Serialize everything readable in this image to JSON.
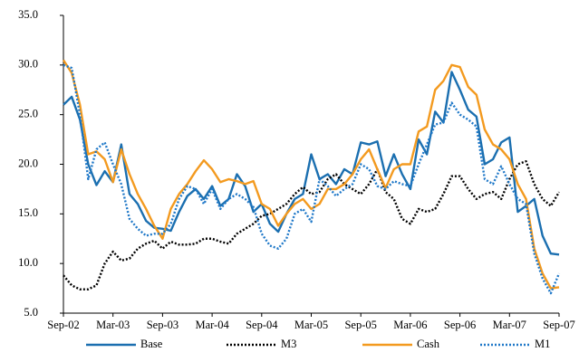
{
  "chart_data": {
    "type": "line",
    "categories": [
      "Sep-02",
      null,
      null,
      null,
      null,
      null,
      "Mar-03",
      null,
      null,
      null,
      null,
      null,
      "Sep-03",
      null,
      null,
      null,
      null,
      null,
      "Mar-04",
      null,
      null,
      null,
      null,
      null,
      "Sep-04",
      null,
      null,
      null,
      null,
      null,
      "Mar-05",
      null,
      null,
      null,
      null,
      null,
      "Sep-05",
      null,
      null,
      null,
      null,
      null,
      "Mar-06",
      null,
      null,
      null,
      null,
      null,
      "Sep-06",
      null,
      null,
      null,
      null,
      null,
      "Mar-07",
      null,
      null,
      null,
      null,
      null,
      "Sep-07"
    ],
    "ylim": [
      5,
      35
    ],
    "yticks": [
      {
        "value": 5,
        "label": "5.0"
      },
      {
        "value": 10,
        "label": "10.0"
      },
      {
        "value": 15,
        "label": "15.0"
      },
      {
        "value": 20,
        "label": "20.0"
      },
      {
        "value": 25,
        "label": "25.0"
      },
      {
        "value": 30,
        "label": "30.0"
      },
      {
        "value": 35,
        "label": "35.0"
      }
    ],
    "grid": false,
    "series": [
      {
        "name": "Base",
        "color": "#1b6fb0",
        "dash": "solid",
        "values": [
          26.0,
          26.8,
          24.5,
          20.0,
          17.9,
          19.3,
          18.2,
          22.0,
          17.0,
          16.0,
          14.3,
          13.6,
          13.5,
          13.3,
          15.2,
          16.8,
          17.5,
          16.5,
          17.8,
          15.8,
          16.5,
          19.0,
          17.8,
          15.2,
          16.0,
          14.0,
          13.2,
          15.0,
          16.5,
          17.0,
          21.0,
          18.5,
          19.0,
          18.0,
          19.5,
          19.0,
          22.2,
          22.0,
          22.3,
          18.8,
          21.0,
          19.0,
          17.5,
          22.5,
          21.0,
          25.3,
          24.2,
          29.3,
          27.5,
          25.5,
          24.8,
          20.0,
          20.5,
          22.2,
          22.7,
          15.2,
          15.8,
          16.5,
          12.8,
          11.0,
          10.9
        ]
      },
      {
        "name": "M3",
        "color": "#000000",
        "dash": "dotted",
        "values": [
          8.8,
          7.8,
          7.4,
          7.4,
          7.8,
          10.0,
          11.2,
          10.3,
          10.5,
          11.5,
          12.0,
          12.3,
          11.5,
          12.2,
          11.9,
          11.9,
          12.0,
          12.5,
          12.5,
          12.2,
          12.0,
          13.0,
          13.5,
          14.0,
          14.8,
          15.0,
          15.5,
          16.0,
          17.0,
          17.7,
          17.0,
          17.2,
          18.5,
          19.0,
          18.0,
          17.5,
          17.0,
          18.0,
          19.5,
          17.2,
          16.5,
          14.5,
          14.0,
          15.5,
          15.2,
          15.5,
          17.0,
          18.8,
          18.8,
          17.5,
          16.5,
          17.0,
          17.2,
          16.5,
          18.5,
          20.0,
          20.3,
          18.0,
          16.5,
          15.8,
          17.2
        ]
      },
      {
        "name": "Cash",
        "color": "#f39a1f",
        "dash": "solid",
        "values": [
          30.5,
          29.2,
          26.0,
          21.0,
          21.3,
          20.5,
          18.2,
          21.5,
          19.0,
          17.0,
          15.5,
          13.8,
          12.5,
          15.5,
          17.0,
          18.0,
          19.3,
          20.4,
          19.5,
          18.2,
          18.5,
          18.3,
          18.0,
          18.3,
          16.0,
          15.5,
          13.8,
          15.0,
          16.0,
          16.5,
          15.5,
          16.0,
          17.5,
          17.5,
          18.0,
          19.0,
          20.5,
          21.5,
          19.5,
          17.6,
          19.5,
          20.0,
          20.0,
          23.3,
          23.8,
          27.5,
          28.4,
          30.0,
          29.8,
          27.8,
          27.0,
          23.5,
          22.0,
          21.5,
          20.5,
          18.0,
          16.5,
          11.5,
          9.0,
          7.5,
          7.6
        ]
      },
      {
        "name": "M1",
        "color": "#1f78c8",
        "dash": "dotted",
        "values": [
          30.0,
          29.7,
          25.0,
          18.5,
          21.5,
          22.2,
          20.0,
          18.0,
          14.5,
          13.5,
          12.8,
          13.0,
          13.0,
          14.0,
          16.5,
          17.8,
          17.5,
          16.0,
          17.5,
          15.5,
          16.5,
          17.0,
          16.5,
          15.7,
          13.0,
          11.8,
          11.5,
          12.5,
          15.0,
          15.5,
          14.2,
          18.5,
          17.8,
          16.8,
          17.5,
          18.0,
          20.0,
          19.5,
          17.8,
          17.5,
          18.3,
          18.0,
          17.8,
          20.0,
          22.0,
          24.0,
          24.2,
          26.2,
          25.0,
          24.5,
          23.8,
          18.5,
          18.0,
          19.8,
          18.0,
          16.5,
          16.0,
          11.0,
          8.5,
          7.0,
          9.0
        ]
      }
    ]
  }
}
